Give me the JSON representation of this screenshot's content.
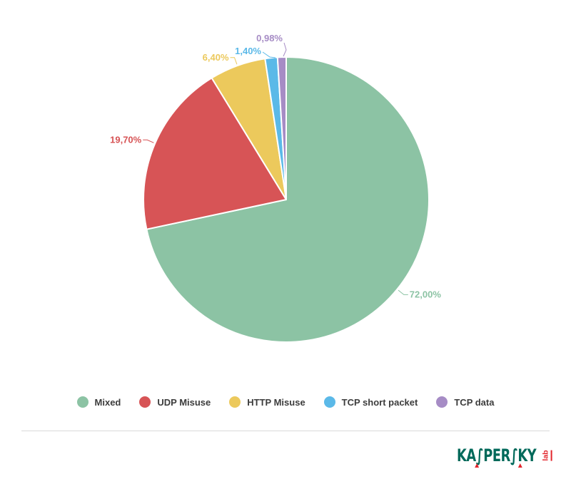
{
  "chart_data": {
    "type": "pie",
    "title": "",
    "legend_position": "bottom",
    "direction": "clockwise",
    "start_angle_deg": 0,
    "slices": [
      {
        "label": "Mixed",
        "value": 72.0,
        "display": "72,00%",
        "color": "#8cc3a4"
      },
      {
        "label": "UDP Misuse",
        "value": 19.7,
        "display": "19,70%",
        "color": "#d75456"
      },
      {
        "label": "HTTP Misuse",
        "value": 6.4,
        "display": "6,40%",
        "color": "#ecc95c"
      },
      {
        "label": "TCP short packet",
        "value": 1.4,
        "display": "1,40%",
        "color": "#5bb9e8"
      },
      {
        "label": "TCP data",
        "value": 0.98,
        "display": "0,98%",
        "color": "#a68cc5"
      }
    ]
  },
  "logo": {
    "brand": "KASPERSKY",
    "suffix": "lab"
  }
}
